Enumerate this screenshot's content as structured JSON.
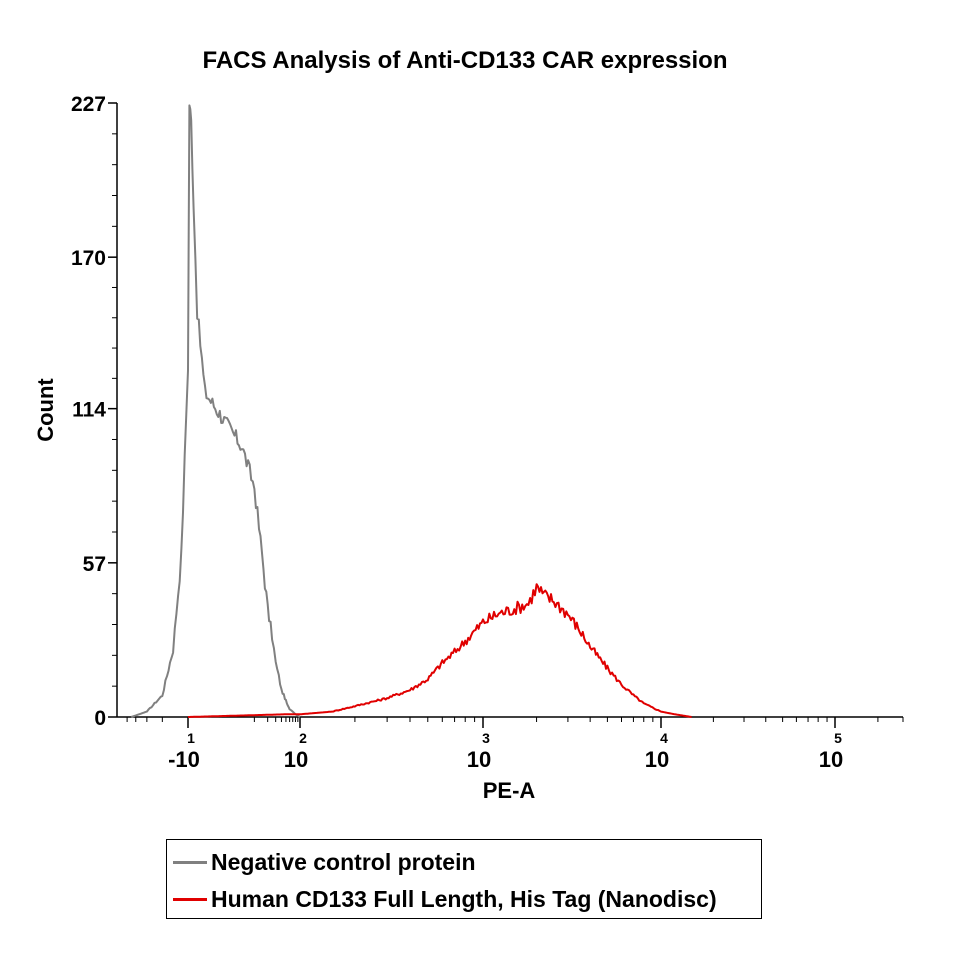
{
  "chart_data": {
    "type": "line",
    "title": "FACS Analysis of Anti-CD133 CAR expression",
    "xlabel": "PE-A",
    "ylabel": "Count",
    "x_scale": "biexponential",
    "x_ticks": [
      {
        "value": -10,
        "label": "-10",
        "exponent": "1"
      },
      {
        "value": 100,
        "label": "10",
        "exponent": "2"
      },
      {
        "value": 1000,
        "label": "10",
        "exponent": "3"
      },
      {
        "value": 10000,
        "label": "10",
        "exponent": "4"
      },
      {
        "value": 100000,
        "label": "10",
        "exponent": "5"
      }
    ],
    "y_ticks": [
      0,
      57,
      114,
      170,
      227
    ],
    "ylim": [
      0,
      227
    ],
    "xlim": [
      -60,
      300000
    ],
    "grid": false,
    "legend_position": "bottom",
    "series": [
      {
        "name": "Negative control protein",
        "color": "#808080",
        "x": [
          -45,
          -30,
          -20,
          -15,
          -12,
          -10,
          -8,
          -6,
          -4,
          -2,
          0,
          5,
          10,
          15,
          20,
          25,
          30,
          35,
          40,
          45,
          50,
          55,
          60,
          70,
          80,
          90,
          100
        ],
        "y": [
          0,
          2,
          8,
          25,
          60,
          130,
          227,
          220,
          190,
          150,
          120,
          100,
          85,
          60,
          40,
          30,
          20,
          15,
          10,
          8,
          6,
          4,
          3,
          2,
          1,
          0.5,
          0
        ]
      },
      {
        "name": "Human CD133 Full Length, His Tag (Nanodisc)",
        "color": "#e00000",
        "x": [
          -10,
          50,
          100,
          150,
          200,
          300,
          400,
          500,
          600,
          700,
          800,
          1000,
          1200,
          1500,
          1800,
          2000,
          2200,
          2500,
          3000,
          3500,
          4000,
          5000,
          6000,
          7000,
          8000,
          10000,
          12000,
          15000
        ],
        "y": [
          0,
          1,
          1,
          2,
          4,
          7,
          10,
          14,
          20,
          24,
          28,
          35,
          38,
          40,
          42,
          48,
          45,
          43,
          38,
          32,
          26,
          18,
          12,
          8,
          5,
          2,
          1,
          0
        ]
      }
    ]
  }
}
